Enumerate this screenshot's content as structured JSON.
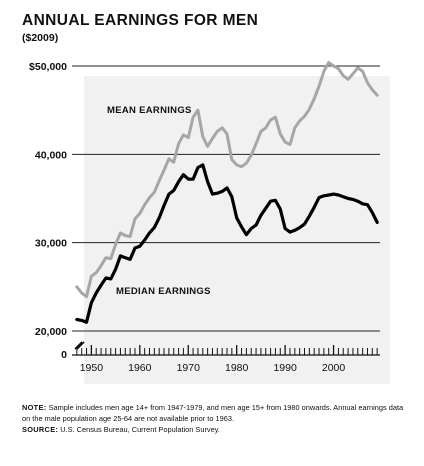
{
  "chart_data": {
    "type": "line",
    "title": "ANNUAL EARNINGS FOR MEN",
    "subtitle": "($2009)",
    "xlabel": "",
    "ylabel": "",
    "x": [
      1947,
      1948,
      1949,
      1950,
      1951,
      1952,
      1953,
      1954,
      1955,
      1956,
      1957,
      1958,
      1959,
      1960,
      1961,
      1962,
      1963,
      1964,
      1965,
      1966,
      1967,
      1968,
      1969,
      1970,
      1971,
      1972,
      1973,
      1974,
      1975,
      1976,
      1977,
      1978,
      1979,
      1980,
      1981,
      1982,
      1983,
      1984,
      1985,
      1986,
      1987,
      1988,
      1989,
      1990,
      1991,
      1992,
      1993,
      1994,
      1995,
      1996,
      1997,
      1998,
      1999,
      2000,
      2001,
      2002,
      2003,
      2004,
      2005,
      2006,
      2007,
      2008,
      2009
    ],
    "series": [
      {
        "name": "MEAN EARNINGS",
        "color": "#a6a6a6",
        "values": [
          25000,
          24300,
          23900,
          26200,
          26600,
          27400,
          28300,
          28200,
          29800,
          31100,
          30800,
          30700,
          32700,
          33300,
          34300,
          35100,
          35700,
          37000,
          38200,
          39500,
          39100,
          41200,
          42200,
          41900,
          44200,
          45000,
          42000,
          40900,
          41800,
          42600,
          43000,
          42300,
          39400,
          38800,
          38600,
          39000,
          39900,
          41200,
          42600,
          43000,
          43900,
          44200,
          42300,
          41400,
          41100,
          43000,
          43800,
          44300,
          45100,
          46300,
          47700,
          49400,
          50400,
          50000,
          49700,
          48900,
          48500,
          49100,
          49800,
          49400,
          48100,
          47300,
          46700
        ]
      },
      {
        "name": "MEDIAN EARNINGS",
        "color": "#000000",
        "values": [
          21300,
          21200,
          21000,
          23200,
          24300,
          25200,
          26000,
          25900,
          27000,
          28500,
          28300,
          28100,
          29400,
          29600,
          30300,
          31100,
          31700,
          32800,
          34200,
          35500,
          35900,
          36900,
          37700,
          37200,
          37200,
          38500,
          38800,
          36900,
          35500,
          35600,
          35800,
          36200,
          35200,
          32800,
          31800,
          30900,
          31600,
          32000,
          33100,
          33900,
          34700,
          34800,
          33800,
          31600,
          31200,
          31400,
          31700,
          32100,
          33000,
          34000,
          35100,
          35300,
          35400,
          35500,
          35400,
          35200,
          35000,
          34900,
          34700,
          34400,
          34300,
          33400,
          32300
        ]
      }
    ],
    "ylim": [
      20000,
      50000
    ],
    "yticks": [
      20000,
      30000,
      40000,
      50000
    ],
    "ytick_labels": [
      "20,000",
      "30,000",
      "40,000",
      "$50,000"
    ],
    "y_zero_label": "0",
    "axis_break": true,
    "xticks": [
      1950,
      1960,
      1970,
      1980,
      1990,
      2000
    ],
    "xtick_labels": [
      "1950",
      "1960",
      "1970",
      "1980",
      "1990",
      "2000"
    ],
    "xlim": [
      1946,
      2010
    ],
    "grid": true,
    "series_labels": [
      "MEAN EARNINGS",
      "MEDIAN EARNINGS"
    ]
  },
  "footnote": {
    "note_label": "NOTE:",
    "note_text": "Sample includes men age 14+ from 1947-1979, and men age 15+ from 1980 onwards. Annual earnings data on the male population age 25-64 are not available prior to 1963.",
    "source_label": "SOURCE:",
    "source_text": "U.S. Census Bureau, Current Population Survey."
  }
}
